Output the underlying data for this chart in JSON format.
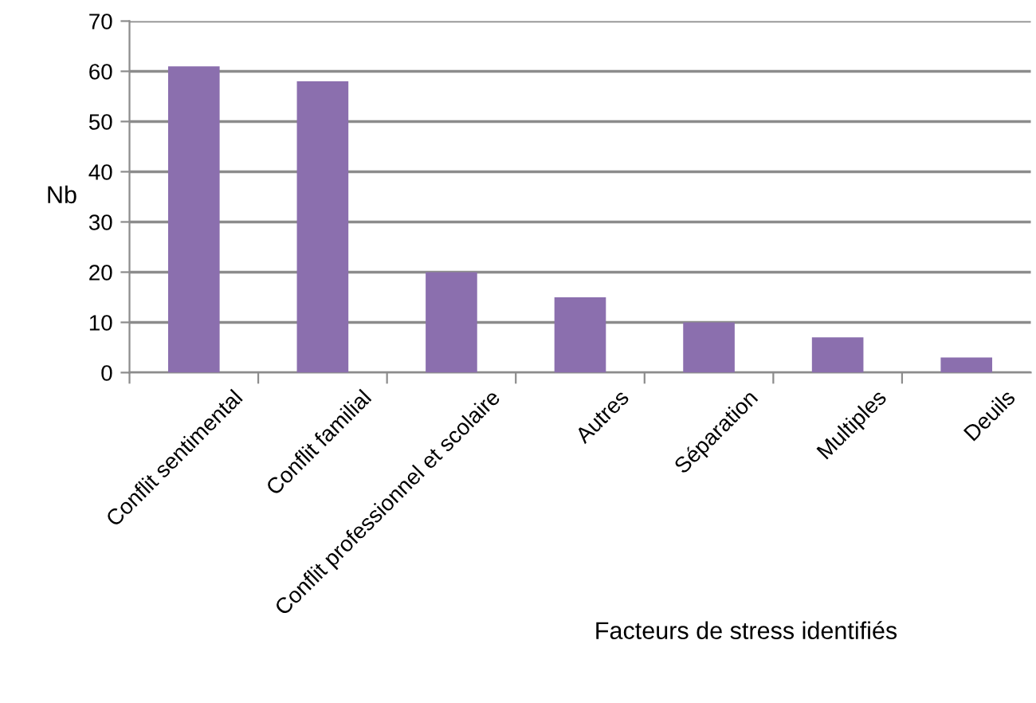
{
  "chart_data": {
    "type": "bar",
    "xlabel": "Facteurs de stress identifiés",
    "ylabel": "Nb",
    "categories": [
      "Conflit sentimental",
      "Conflit familial",
      "Conflit professionnel et scolaire",
      "Autres",
      "Séparation",
      "Multiples",
      "Deuils"
    ],
    "values": [
      61,
      58,
      20,
      15,
      10,
      7,
      3
    ],
    "color": "#8b6fae",
    "ylim": [
      0,
      70
    ],
    "yticks": [
      0,
      10,
      20,
      30,
      40,
      50,
      60,
      70
    ],
    "grid": "y",
    "legend": false
  }
}
